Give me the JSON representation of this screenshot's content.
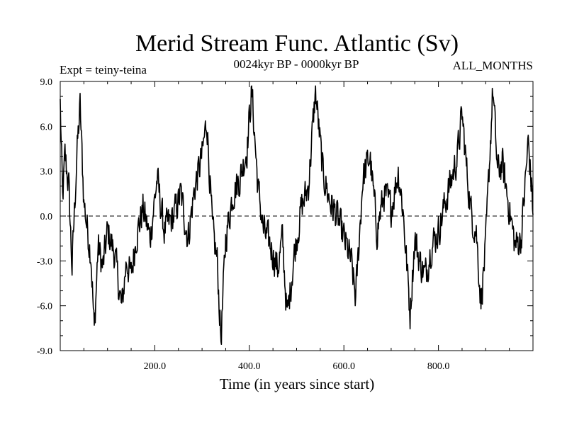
{
  "chart_data": {
    "type": "line",
    "title": "Merid Stream Func. Atlantic (Sv)",
    "subtitle_left": "Expt = teiny-teina",
    "subtitle_center": "0024kyr BP - 0000kyr BP",
    "subtitle_right": "ALL_MONTHS",
    "xlabel": "Time (in years since start)",
    "ylabel": "",
    "xlim": [
      0,
      1000
    ],
    "ylim": [
      -9,
      9
    ],
    "xticks": [
      200,
      400,
      600,
      800
    ],
    "xtick_labels": [
      "200.0",
      "400.0",
      "600.0",
      "800.0"
    ],
    "yticks": [
      9,
      6,
      3,
      0,
      -3,
      -6,
      -9
    ],
    "ytick_labels": [
      "9.0",
      "6.0",
      "3.0",
      "0.0",
      "-3.0",
      "-6.0",
      "-9.0"
    ],
    "zero_line": "dashed",
    "series": [
      {
        "name": "Merid Stream Func. Atlantic",
        "anchors_x": [
          0,
          5,
          10,
          18,
          25,
          35,
          42,
          50,
          60,
          65,
          72,
          80,
          90,
          100,
          115,
          130,
          140,
          150,
          160,
          175,
          190,
          205,
          220,
          240,
          255,
          270,
          285,
          300,
          310,
          322,
          332,
          340,
          350,
          365,
          380,
          395,
          405,
          418,
          430,
          445,
          460,
          470,
          480,
          495,
          510,
          525,
          540,
          555,
          570,
          585,
          600,
          615,
          625,
          640,
          655,
          670,
          685,
          700,
          715,
          725,
          740,
          750,
          760,
          772,
          785,
          800,
          815,
          828,
          840,
          850,
          860,
          870,
          880,
          890,
          900,
          915,
          925,
          935,
          950,
          962,
          975,
          990,
          1000
        ],
        "anchors_y": [
          7.5,
          1.0,
          4.0,
          2.0,
          -3.5,
          4.0,
          7.3,
          1.0,
          -1.5,
          -2.5,
          -7.8,
          -2.0,
          -3.5,
          -1.0,
          -2.5,
          -6.2,
          -3.0,
          -4.0,
          -1.5,
          0.5,
          -1.5,
          2.5,
          -1.0,
          0.0,
          1.5,
          -1.5,
          2.0,
          4.0,
          6.5,
          -1.0,
          -3.0,
          -8.3,
          -1.5,
          1.5,
          2.5,
          4.5,
          8.5,
          2.0,
          -1.0,
          -2.0,
          -3.5,
          -1.5,
          -6.8,
          -2.5,
          0.5,
          2.0,
          8.4,
          3.0,
          1.0,
          0.0,
          -1.5,
          -3.0,
          -5.5,
          2.5,
          4.0,
          -1.0,
          1.5,
          0.5,
          3.0,
          0.5,
          -6.5,
          -1.5,
          -3.0,
          -4.0,
          -2.0,
          -1.0,
          1.0,
          2.5,
          4.0,
          6.8,
          3.0,
          0.0,
          -1.0,
          -5.8,
          -2.0,
          8.5,
          3.0,
          3.5,
          0.5,
          -2.0,
          -1.5,
          5.0,
          0.5
        ],
        "noise_amplitude_sv": 1.6,
        "samples": 1000
      }
    ]
  }
}
